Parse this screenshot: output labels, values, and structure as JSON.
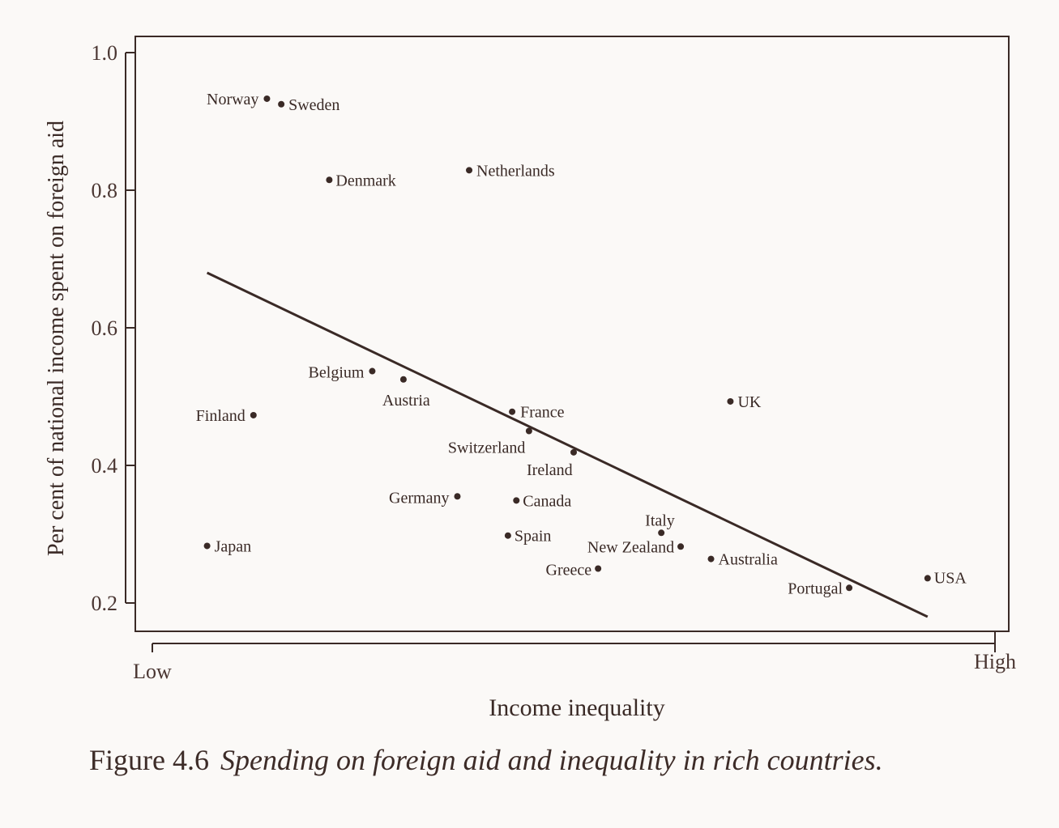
{
  "chart_data": {
    "type": "scatter",
    "xlabel": "Income inequality",
    "ylabel": "Per cent of national income spent on foreign aid",
    "x_ticks": [
      "Low",
      "High"
    ],
    "y_ticks": [
      "1.0",
      "0.8",
      "0.6",
      "0.4",
      "0.2"
    ],
    "xlim": [
      0,
      1
    ],
    "ylim": [
      0.2,
      1.0
    ],
    "grid": false,
    "legend": "none",
    "points": [
      {
        "label": "Norway",
        "x": 0.136,
        "y": 0.933
      },
      {
        "label": "Sweden",
        "x": 0.153,
        "y": 0.925
      },
      {
        "label": "Denmark",
        "x": 0.21,
        "y": 0.815
      },
      {
        "label": "Netherlands",
        "x": 0.376,
        "y": 0.829
      },
      {
        "label": "Belgium",
        "x": 0.261,
        "y": 0.537
      },
      {
        "label": "Austria",
        "x": 0.298,
        "y": 0.525
      },
      {
        "label": "Finland",
        "x": 0.12,
        "y": 0.473
      },
      {
        "label": "France",
        "x": 0.427,
        "y": 0.478
      },
      {
        "label": "Switzerland",
        "x": 0.447,
        "y": 0.45
      },
      {
        "label": "Ireland",
        "x": 0.5,
        "y": 0.419
      },
      {
        "label": "Germany",
        "x": 0.362,
        "y": 0.355
      },
      {
        "label": "Canada",
        "x": 0.432,
        "y": 0.349
      },
      {
        "label": "Spain",
        "x": 0.422,
        "y": 0.298
      },
      {
        "label": "Japan",
        "x": 0.065,
        "y": 0.283
      },
      {
        "label": "Italy",
        "x": 0.604,
        "y": 0.302
      },
      {
        "label": "New Zealand",
        "x": 0.627,
        "y": 0.282
      },
      {
        "label": "Greece",
        "x": 0.529,
        "y": 0.25
      },
      {
        "label": "Australia",
        "x": 0.663,
        "y": 0.264
      },
      {
        "label": "UK",
        "x": 0.686,
        "y": 0.493
      },
      {
        "label": "Portugal",
        "x": 0.827,
        "y": 0.222
      },
      {
        "label": "USA",
        "x": 0.92,
        "y": 0.236
      }
    ],
    "trend_line": {
      "x": [
        0.065,
        0.92
      ],
      "y": [
        0.68,
        0.18
      ]
    }
  },
  "figure": {
    "number": "Figure 4.6",
    "title": "Spending on foreign aid and inequality in rich countries."
  }
}
